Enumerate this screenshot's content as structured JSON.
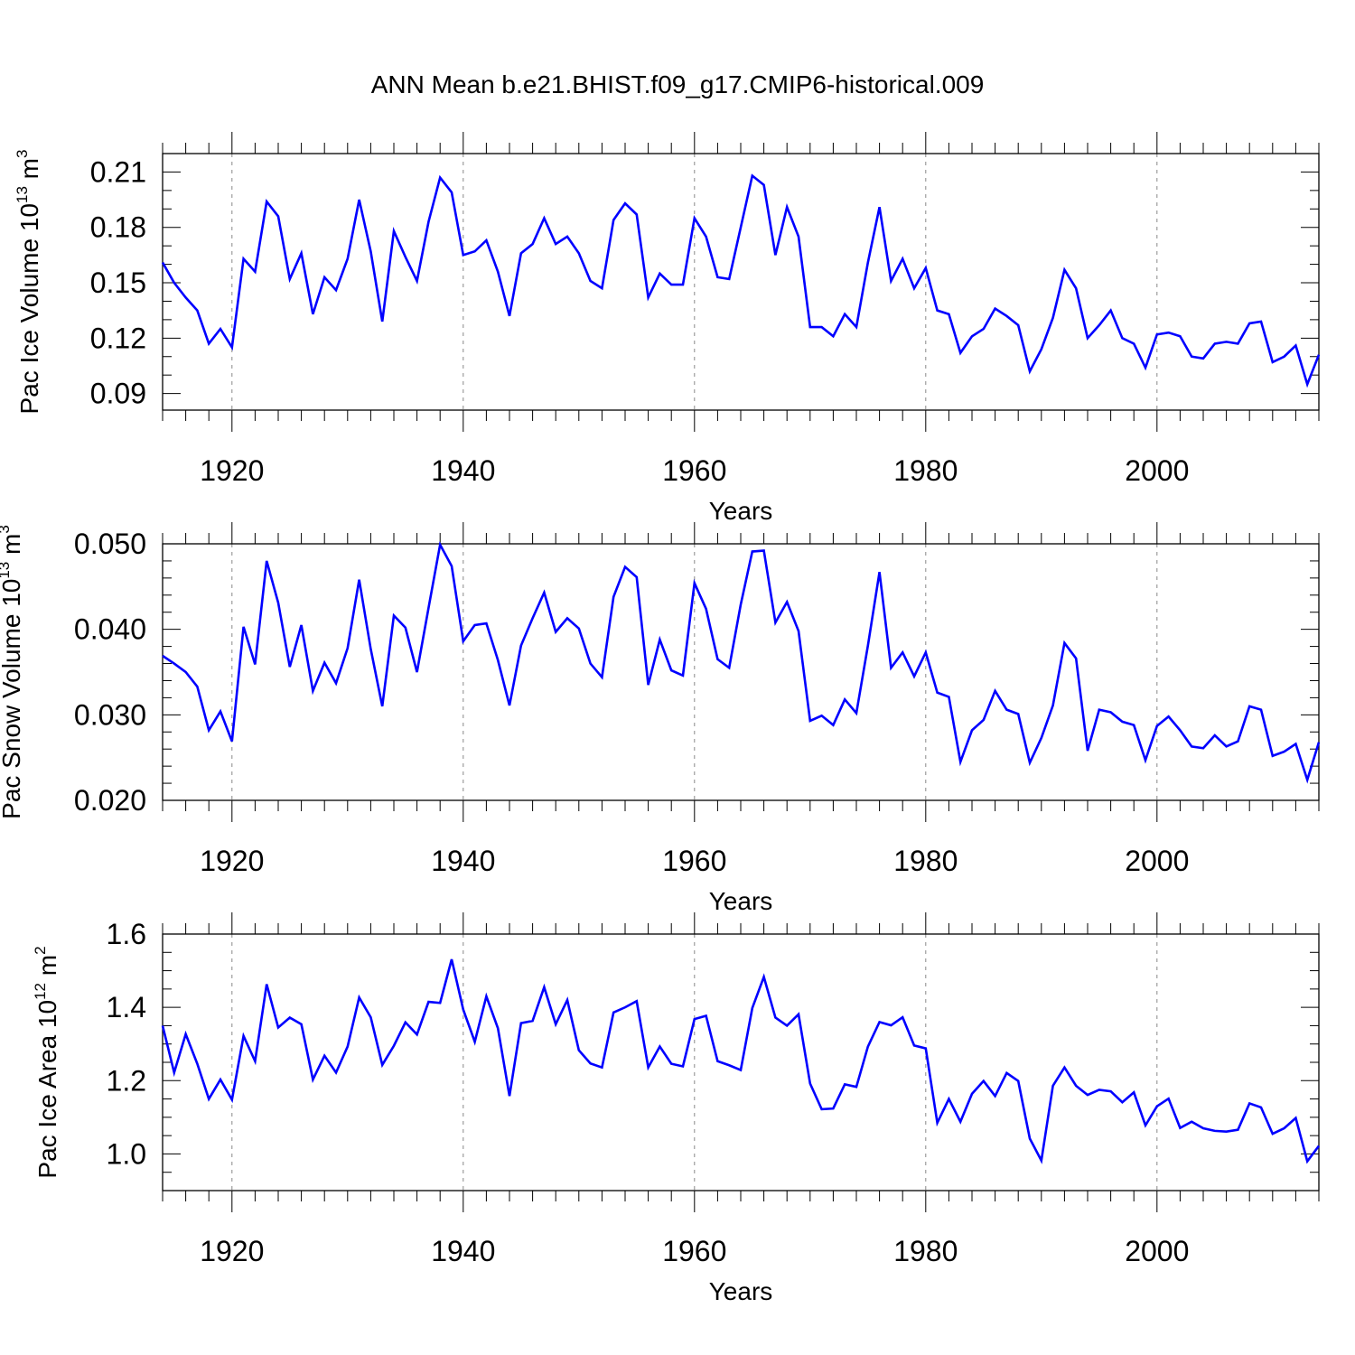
{
  "title": "ANN Mean b.e21.BHIST.f09_g17.CMIP6-historical.009",
  "line_color": "#0000ff",
  "chart_data": [
    {
      "type": "line",
      "ylabel_main": "Pac Ice Volume 10",
      "ylabel_exp": "13",
      "ylabel_unit": " m",
      "ylabel_unit_exp": "3",
      "xlabel": "Years",
      "xlim": [
        1914,
        2014
      ],
      "ylim": [
        0.081,
        0.22
      ],
      "yticks": [
        0.09,
        0.12,
        0.15,
        0.18,
        0.21
      ],
      "ytick_labels": [
        "0.09",
        "0.12",
        "0.15",
        "0.18",
        "0.21"
      ],
      "yminor_step": 0.01,
      "xticks": [
        1920,
        1940,
        1960,
        1980,
        2000
      ],
      "xtick_labels": [
        "1920",
        "1940",
        "1960",
        "1980",
        "2000"
      ],
      "x": [
        1914,
        1915,
        1916,
        1917,
        1918,
        1919,
        1920,
        1921,
        1922,
        1923,
        1924,
        1925,
        1926,
        1927,
        1928,
        1929,
        1930,
        1931,
        1932,
        1933,
        1934,
        1935,
        1936,
        1937,
        1938,
        1939,
        1940,
        1941,
        1942,
        1943,
        1944,
        1945,
        1946,
        1947,
        1948,
        1949,
        1950,
        1951,
        1952,
        1953,
        1954,
        1955,
        1956,
        1957,
        1958,
        1959,
        1960,
        1961,
        1962,
        1963,
        1964,
        1965,
        1966,
        1967,
        1968,
        1969,
        1970,
        1971,
        1972,
        1973,
        1974,
        1975,
        1976,
        1977,
        1978,
        1979,
        1980,
        1981,
        1982,
        1983,
        1984,
        1985,
        1986,
        1987,
        1988,
        1989,
        1990,
        1991,
        1992,
        1993,
        1994,
        1995,
        1996,
        1997,
        1998,
        1999,
        2000,
        2001,
        2002,
        2003,
        2004,
        2005,
        2006,
        2007,
        2008,
        2009,
        2010,
        2011,
        2012,
        2013,
        2014
      ],
      "values": [
        0.161,
        0.15,
        0.142,
        0.135,
        0.117,
        0.125,
        0.115,
        0.163,
        0.156,
        0.194,
        0.186,
        0.152,
        0.166,
        0.133,
        0.153,
        0.146,
        0.163,
        0.195,
        0.167,
        0.129,
        0.178,
        0.164,
        0.151,
        0.183,
        0.207,
        0.199,
        0.165,
        0.167,
        0.173,
        0.156,
        0.132,
        0.166,
        0.171,
        0.185,
        0.171,
        0.175,
        0.166,
        0.151,
        0.147,
        0.184,
        0.193,
        0.187,
        0.142,
        0.155,
        0.149,
        0.149,
        0.185,
        0.175,
        0.153,
        0.152,
        0.18,
        0.208,
        0.203,
        0.165,
        0.191,
        0.175,
        0.126,
        0.126,
        0.121,
        0.133,
        0.126,
        0.161,
        0.191,
        0.151,
        0.163,
        0.147,
        0.158,
        0.135,
        0.133,
        0.112,
        0.121,
        0.125,
        0.136,
        0.132,
        0.127,
        0.102,
        0.114,
        0.131,
        0.157,
        0.147,
        0.12,
        0.127,
        0.135,
        0.12,
        0.117,
        0.104,
        0.122,
        0.123,
        0.121,
        0.11,
        0.109,
        0.117,
        0.118,
        0.117,
        0.128,
        0.129,
        0.107,
        0.11,
        0.116,
        0.095,
        0.111
      ]
    },
    {
      "type": "line",
      "ylabel_main": "Pac Snow Volume 10",
      "ylabel_exp": "13",
      "ylabel_unit": " m",
      "ylabel_unit_exp": "3",
      "xlabel": "Years",
      "xlim": [
        1914,
        2014
      ],
      "ylim": [
        0.02,
        0.05
      ],
      "yticks": [
        0.02,
        0.03,
        0.04,
        0.05
      ],
      "ytick_labels": [
        "0.020",
        "0.030",
        "0.040",
        "0.050"
      ],
      "yminor_step": 0.002,
      "xticks": [
        1920,
        1940,
        1960,
        1980,
        2000
      ],
      "xtick_labels": [
        "1920",
        "1940",
        "1960",
        "1980",
        "2000"
      ],
      "x": [
        1914,
        1915,
        1916,
        1917,
        1918,
        1919,
        1920,
        1921,
        1922,
        1923,
        1924,
        1925,
        1926,
        1927,
        1928,
        1929,
        1930,
        1931,
        1932,
        1933,
        1934,
        1935,
        1936,
        1937,
        1938,
        1939,
        1940,
        1941,
        1942,
        1943,
        1944,
        1945,
        1946,
        1947,
        1948,
        1949,
        1950,
        1951,
        1952,
        1953,
        1954,
        1955,
        1956,
        1957,
        1958,
        1959,
        1960,
        1961,
        1962,
        1963,
        1964,
        1965,
        1966,
        1967,
        1968,
        1969,
        1970,
        1971,
        1972,
        1973,
        1974,
        1975,
        1976,
        1977,
        1978,
        1979,
        1980,
        1981,
        1982,
        1983,
        1984,
        1985,
        1986,
        1987,
        1988,
        1989,
        1990,
        1991,
        1992,
        1993,
        1994,
        1995,
        1996,
        1997,
        1998,
        1999,
        2000,
        2001,
        2002,
        2003,
        2004,
        2005,
        2006,
        2007,
        2008,
        2009,
        2010,
        2011,
        2012,
        2013,
        2014
      ],
      "values": [
        0.0369,
        0.036,
        0.035,
        0.0333,
        0.0282,
        0.0304,
        0.0269,
        0.0403,
        0.0359,
        0.048,
        0.0431,
        0.0356,
        0.0405,
        0.0328,
        0.0361,
        0.0337,
        0.0378,
        0.0458,
        0.0377,
        0.031,
        0.0416,
        0.0402,
        0.035,
        0.0425,
        0.0499,
        0.0474,
        0.0386,
        0.0405,
        0.0407,
        0.0364,
        0.0311,
        0.0381,
        0.0413,
        0.0443,
        0.0397,
        0.0413,
        0.0401,
        0.036,
        0.0344,
        0.0438,
        0.0473,
        0.0461,
        0.0335,
        0.0388,
        0.0352,
        0.0346,
        0.0454,
        0.0424,
        0.0365,
        0.0355,
        0.0429,
        0.0491,
        0.0492,
        0.0408,
        0.0432,
        0.0398,
        0.0293,
        0.0299,
        0.0288,
        0.0318,
        0.0302,
        0.0381,
        0.0467,
        0.0355,
        0.0373,
        0.0345,
        0.0373,
        0.0326,
        0.0321,
        0.0245,
        0.0282,
        0.0294,
        0.0328,
        0.0306,
        0.0301,
        0.0244,
        0.0273,
        0.0311,
        0.0384,
        0.0366,
        0.0258,
        0.0306,
        0.0303,
        0.0292,
        0.0288,
        0.0247,
        0.0287,
        0.0298,
        0.0282,
        0.0263,
        0.0261,
        0.0276,
        0.0263,
        0.0269,
        0.031,
        0.0306,
        0.0252,
        0.0257,
        0.0266,
        0.0224,
        0.0268
      ]
    },
    {
      "type": "line",
      "ylabel_main": "Pac Ice Area 10",
      "ylabel_exp": "12",
      "ylabel_unit": " m",
      "ylabel_unit_exp": "2",
      "xlabel": "Years",
      "xlim": [
        1914,
        2014
      ],
      "ylim": [
        0.9,
        1.6
      ],
      "yticks": [
        1.0,
        1.2,
        1.4,
        1.6
      ],
      "ytick_labels": [
        "1.0",
        "1.2",
        "1.4",
        "1.6"
      ],
      "yminor_step": 0.05,
      "xticks": [
        1920,
        1940,
        1960,
        1980,
        2000
      ],
      "xtick_labels": [
        "1920",
        "1940",
        "1960",
        "1980",
        "2000"
      ],
      "x": [
        1914,
        1915,
        1916,
        1917,
        1918,
        1919,
        1920,
        1921,
        1922,
        1923,
        1924,
        1925,
        1926,
        1927,
        1928,
        1929,
        1930,
        1931,
        1932,
        1933,
        1934,
        1935,
        1936,
        1937,
        1938,
        1939,
        1940,
        1941,
        1942,
        1943,
        1944,
        1945,
        1946,
        1947,
        1948,
        1949,
        1950,
        1951,
        1952,
        1953,
        1954,
        1955,
        1956,
        1957,
        1958,
        1959,
        1960,
        1961,
        1962,
        1963,
        1964,
        1965,
        1966,
        1967,
        1968,
        1969,
        1970,
        1971,
        1972,
        1973,
        1974,
        1975,
        1976,
        1977,
        1978,
        1979,
        1980,
        1981,
        1982,
        1983,
        1984,
        1985,
        1986,
        1987,
        1988,
        1989,
        1990,
        1991,
        1992,
        1993,
        1994,
        1995,
        1996,
        1997,
        1998,
        1999,
        2000,
        2001,
        2002,
        2003,
        2004,
        2005,
        2006,
        2007,
        2008,
        2009,
        2010,
        2011,
        2012,
        2013,
        2014
      ],
      "values": [
        1.35,
        1.222,
        1.327,
        1.246,
        1.15,
        1.203,
        1.148,
        1.322,
        1.253,
        1.463,
        1.345,
        1.372,
        1.354,
        1.203,
        1.268,
        1.222,
        1.293,
        1.427,
        1.373,
        1.243,
        1.295,
        1.359,
        1.326,
        1.415,
        1.412,
        1.531,
        1.394,
        1.306,
        1.43,
        1.343,
        1.158,
        1.357,
        1.363,
        1.455,
        1.354,
        1.42,
        1.283,
        1.247,
        1.236,
        1.386,
        1.4,
        1.417,
        1.236,
        1.293,
        1.246,
        1.239,
        1.368,
        1.377,
        1.253,
        1.242,
        1.229,
        1.398,
        1.483,
        1.372,
        1.35,
        1.381,
        1.192,
        1.122,
        1.124,
        1.19,
        1.183,
        1.293,
        1.36,
        1.351,
        1.373,
        1.296,
        1.288,
        1.085,
        1.15,
        1.088,
        1.164,
        1.199,
        1.158,
        1.221,
        1.199,
        1.042,
        0.982,
        1.186,
        1.236,
        1.186,
        1.161,
        1.175,
        1.171,
        1.141,
        1.168,
        1.078,
        1.13,
        1.151,
        1.071,
        1.088,
        1.07,
        1.063,
        1.061,
        1.066,
        1.138,
        1.127,
        1.055,
        1.07,
        1.098,
        0.98,
        1.022
      ]
    }
  ]
}
